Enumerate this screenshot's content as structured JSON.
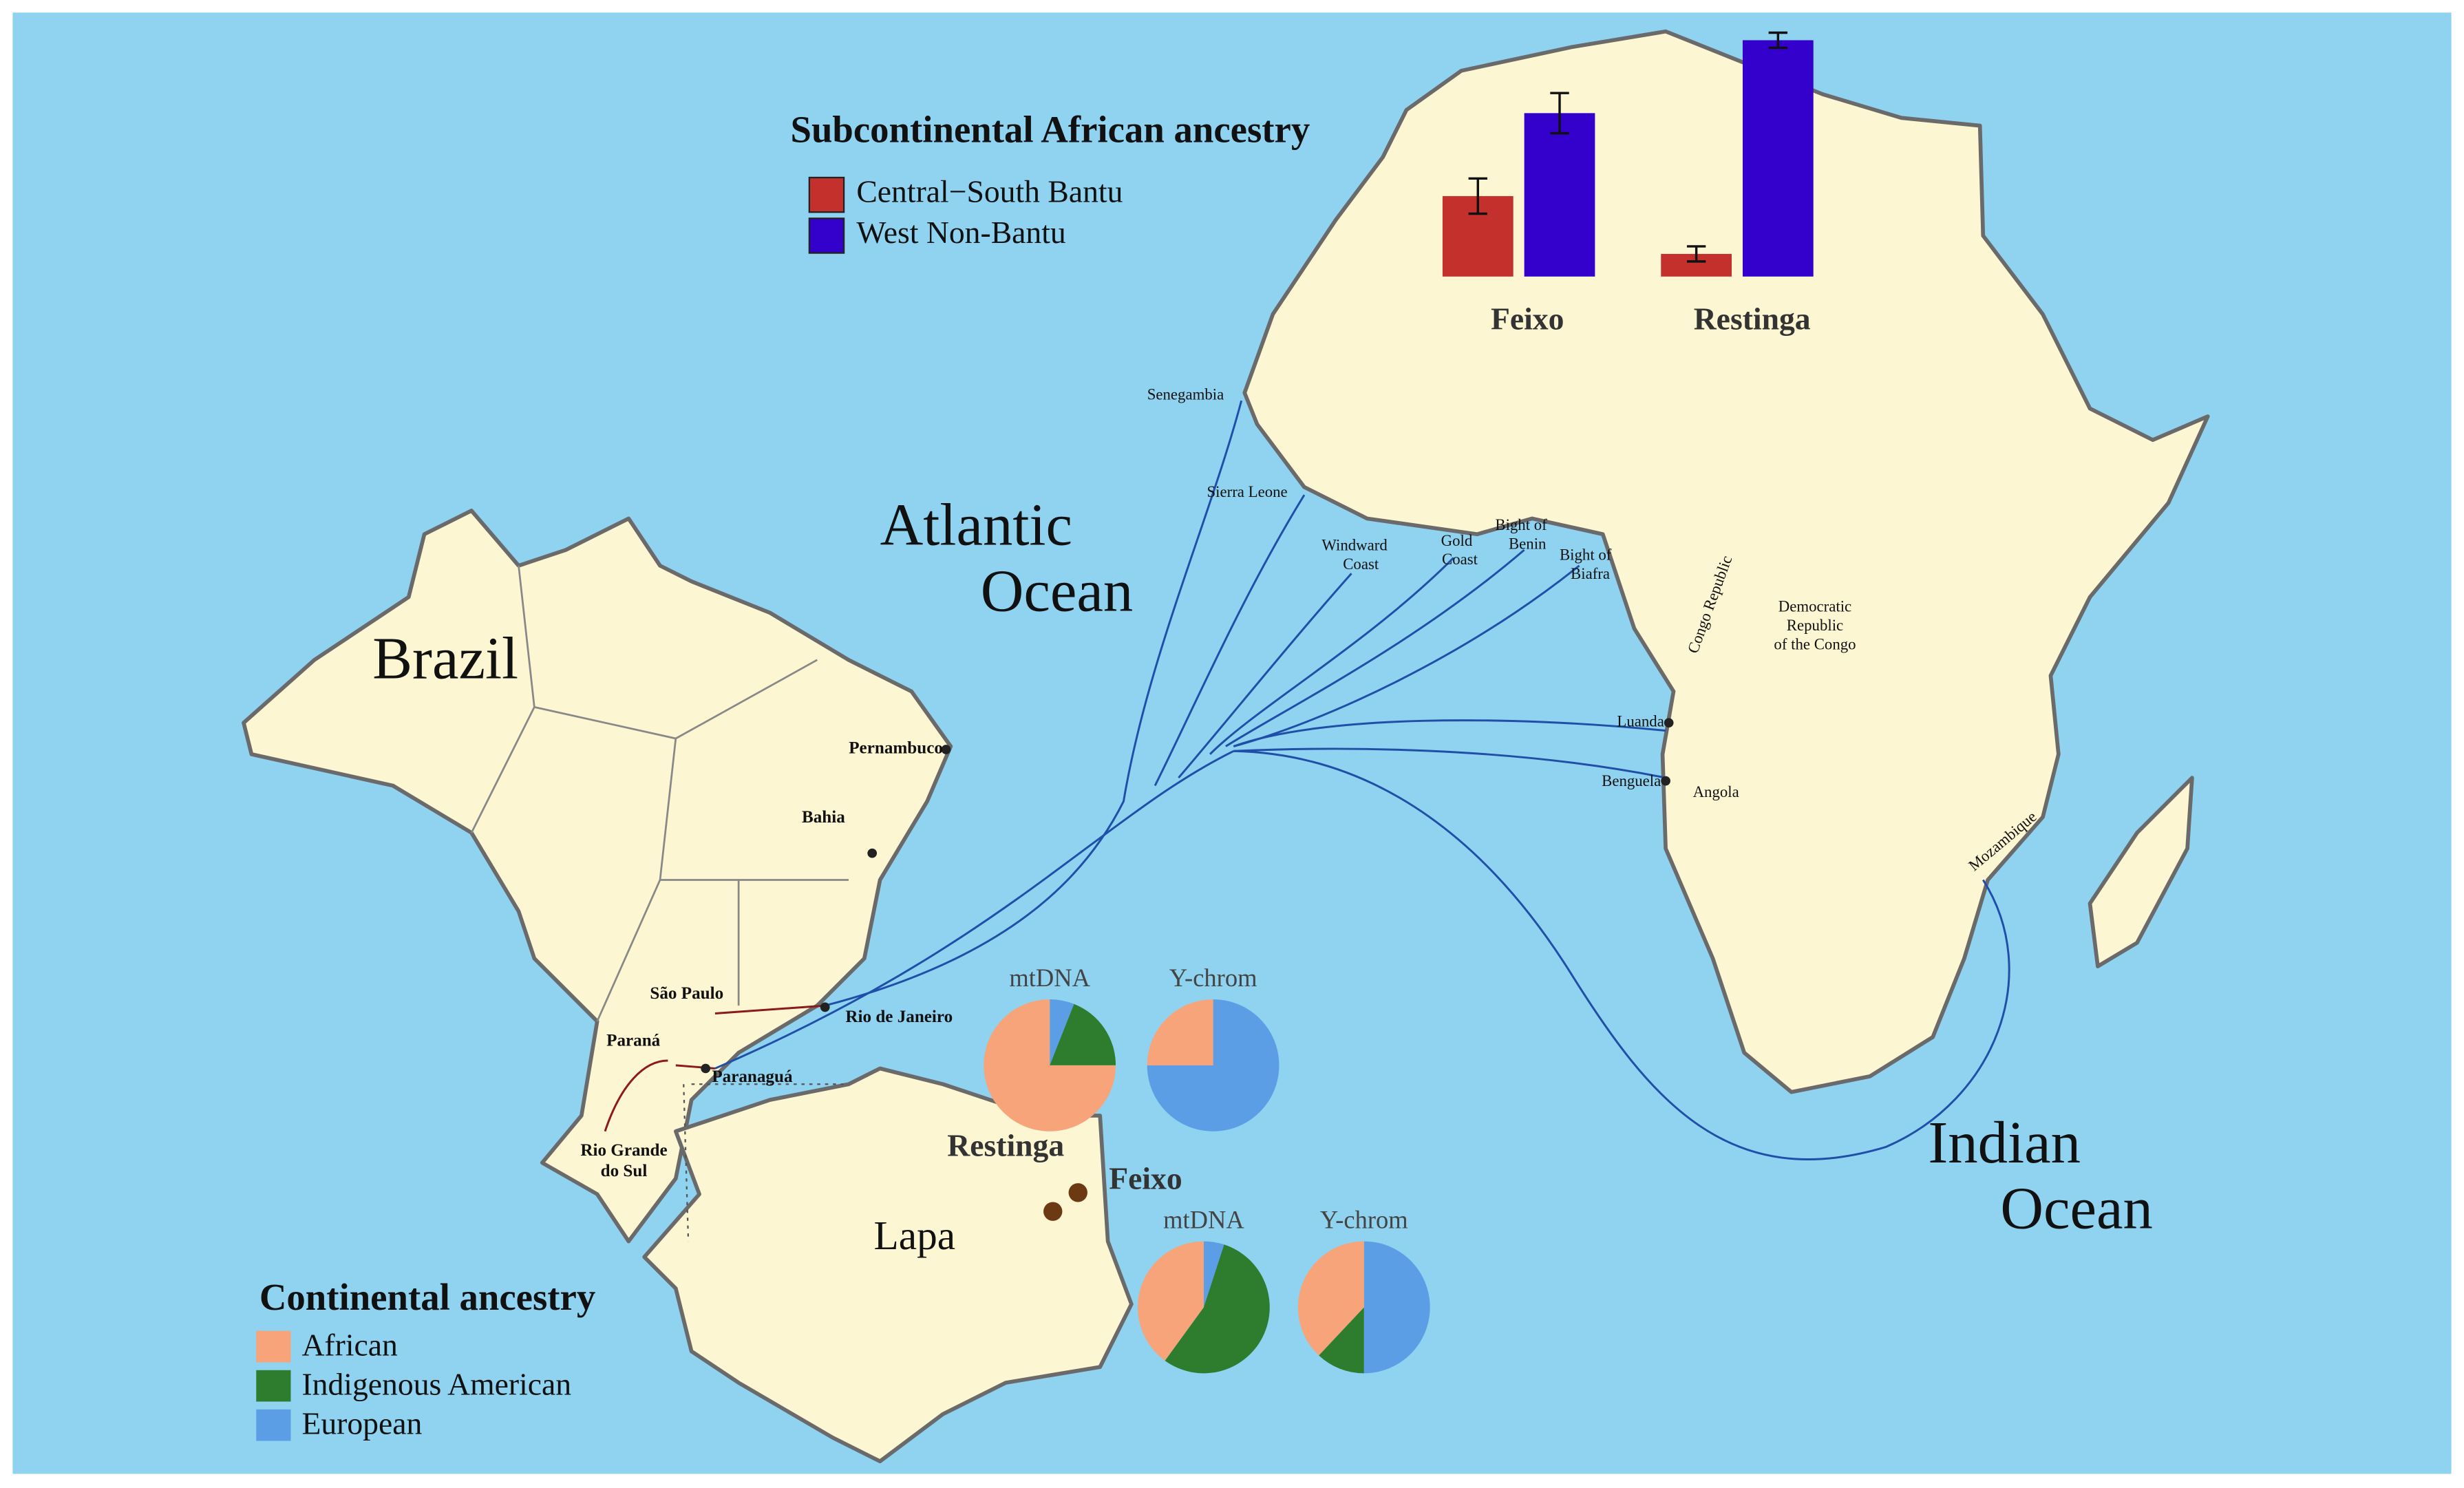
{
  "map": {
    "country": "Brazil",
    "atlantic_ocean": [
      "Atlantic",
      "Ocean"
    ],
    "indian_ocean": [
      "Indian",
      "Ocean"
    ],
    "african_ports": [
      "Senegambia",
      "Sierra Leone",
      [
        "Windward",
        "Coast"
      ],
      [
        "Gold",
        "Coast"
      ],
      [
        "Bight of",
        "Benin"
      ],
      [
        "Bight of",
        "Biafra"
      ],
      "Luanda",
      "Benguela",
      "Mozambique"
    ],
    "african_countries": [
      "Angola",
      [
        "Democratic",
        "Republic",
        "of the Congo"
      ],
      "Congo Republic"
    ],
    "brazilian_places": [
      "Pernambuco",
      "Bahia",
      "São Paulo",
      "Paraná",
      "Rio de Janeiro",
      "Paranaguá",
      [
        "Rio Grande",
        "do Sul"
      ]
    ],
    "region": "Lapa"
  },
  "bar_chart": {
    "type": "bar",
    "title": "Subcontinental African ancestry",
    "categories": [
      "Feixo",
      "Restinga"
    ],
    "series": [
      {
        "name": "Central−South Bantu",
        "color": "#c4302b",
        "values": [
          32,
          9
        ],
        "errors": [
          7,
          3
        ]
      },
      {
        "name": "West Non-Bantu",
        "color": "#3300cc",
        "values": [
          65,
          94
        ],
        "errors": [
          8,
          3
        ]
      }
    ],
    "ylim": [
      0,
      100
    ]
  },
  "pie_chart": {
    "type": "pie",
    "title": "Continental ancestry",
    "categories": [
      "African",
      "Indigenous American",
      "European"
    ],
    "colors": [
      "#f7a47a",
      "#2e7d2e",
      "#5b9ee6"
    ],
    "charts": [
      {
        "site": "Restinga",
        "panels": [
          {
            "title": "mtDNA",
            "values": [
              75,
              19,
              6
            ]
          },
          {
            "title": "Y-chrom",
            "values": [
              25,
              0,
              75
            ]
          }
        ]
      },
      {
        "site": "Feixo",
        "panels": [
          {
            "title": "mtDNA",
            "values": [
              40,
              55,
              5
            ]
          },
          {
            "title": "Y-chrom",
            "values": [
              38,
              12,
              50
            ]
          }
        ]
      }
    ]
  }
}
